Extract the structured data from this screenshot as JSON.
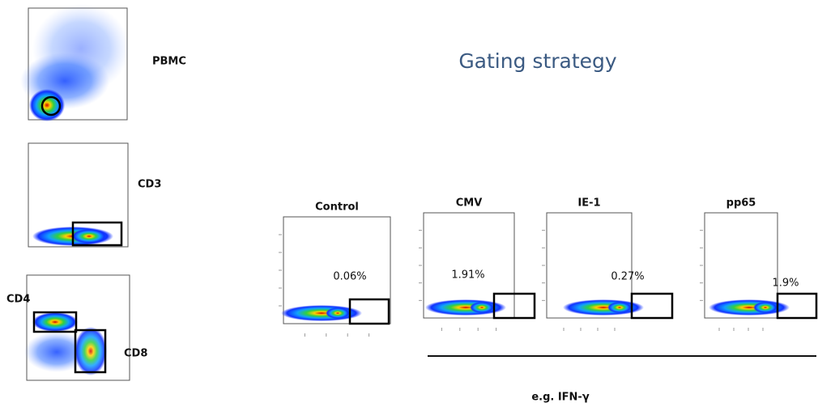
{
  "title": "Gating strategy",
  "gates": [
    "PBMC",
    "CD3",
    "CD4",
    "CD8"
  ],
  "panels": [
    {
      "name": "Control",
      "percent": "0.06%"
    },
    {
      "name": "CMV",
      "percent": "1.91%"
    },
    {
      "name": "IE-1",
      "percent": "0.27%"
    },
    {
      "name": "pp65",
      "percent": "1.9%"
    }
  ],
  "axis_label": "e.g. IFN-γ"
}
